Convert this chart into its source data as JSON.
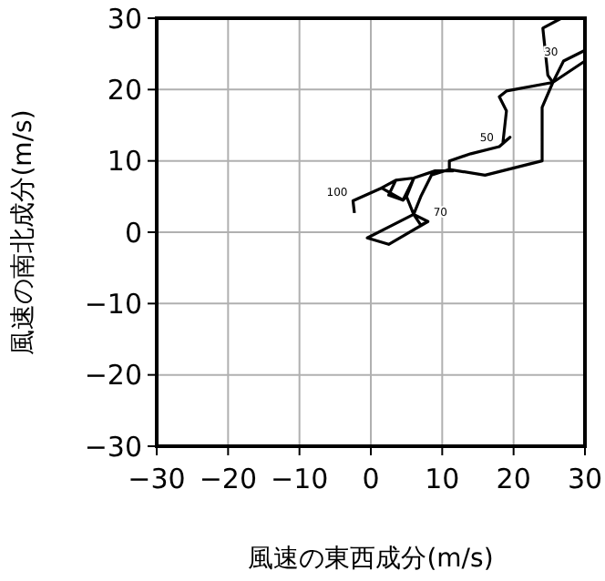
{
  "chart_data": {
    "type": "line",
    "xlabel": "風速の東西成分(m/s)",
    "ylabel": "風速の南北成分(m/s)",
    "xlim": [
      -30,
      30
    ],
    "ylim": [
      -30,
      30
    ],
    "xticks": [
      -30,
      -20,
      -10,
      0,
      10,
      20,
      30
    ],
    "yticks": [
      -30,
      -20,
      -10,
      0,
      10,
      20,
      30
    ],
    "grid": true,
    "marker": "none",
    "line_style": "solid",
    "series": [
      {
        "color": "#000000",
        "x": [
          -2.3,
          -2.5,
          1.5,
          3.5,
          2.5,
          4.5,
          6,
          5,
          6,
          8,
          2.5,
          -0.5,
          6,
          7,
          8.5,
          11,
          16,
          24,
          24,
          25.5,
          30,
          30,
          27,
          25.5,
          19,
          18,
          19,
          18.5,
          19.5,
          18,
          14,
          11,
          11,
          11.5,
          9,
          6,
          3.5,
          1.5,
          4.5,
          5,
          6,
          8,
          7,
          6
        ],
        "values": [
          2.7,
          4.4,
          6.2,
          7.3,
          5.2,
          4.5,
          7.5,
          5,
          2.5,
          1.5,
          -1.7,
          -0.8,
          2.5,
          5,
          8,
          8.8,
          8,
          10,
          17.5,
          21,
          24,
          25.5,
          24,
          21,
          19.8,
          19,
          17,
          12.5,
          13.3,
          12,
          11,
          10,
          8.8,
          8.6,
          8.6,
          7.6,
          7.3,
          6.2,
          4.5,
          5,
          2.5,
          1.5,
          1,
          2.5
        ]
      },
      {
        "color": "#000000",
        "x": [
          25.5,
          24.8,
          24.1,
          26.7
        ],
        "values": [
          21,
          22,
          28.6,
          30
        ]
      }
    ],
    "annotations": [
      {
        "text": "30",
        "x": 27,
        "y": 24
      },
      {
        "text": "50",
        "x": 18,
        "y": 12
      },
      {
        "text": "70",
        "x": 8,
        "y": 1.5
      },
      {
        "text": "100",
        "x": -2.5,
        "y": 4.4
      }
    ]
  }
}
